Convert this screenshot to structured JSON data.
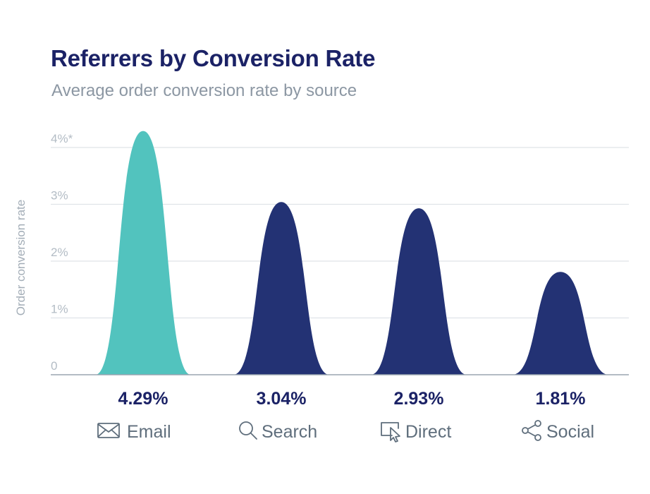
{
  "title": "Referrers by Conversion Rate",
  "subtitle": "Average order conversion rate by source",
  "colors": {
    "highlight": "#52c3be",
    "primary": "#233274",
    "grid": "#dfe3e8",
    "axis": "#9aa5b0"
  },
  "chart_data": {
    "type": "area",
    "title": "Referrers by Conversion Rate",
    "subtitle": "Average order conversion rate by source",
    "xlabel": "",
    "ylabel": "Order conversion rate",
    "ylim": [
      0,
      4.29
    ],
    "grid": true,
    "y_ticks": [
      0,
      1,
      2,
      3,
      4
    ],
    "y_tick_labels": [
      "0",
      "1%",
      "2%",
      "3%",
      "4%*"
    ],
    "categories": [
      "Email",
      "Search",
      "Direct",
      "Social"
    ],
    "values": [
      4.29,
      3.04,
      2.93,
      1.81
    ],
    "value_labels": [
      "4.29%",
      "3.04%",
      "2.93%",
      "1.81%"
    ],
    "icons": [
      "envelope-icon",
      "search-icon",
      "cursor-click-icon",
      "share-icon"
    ],
    "highlight_index": 0
  }
}
